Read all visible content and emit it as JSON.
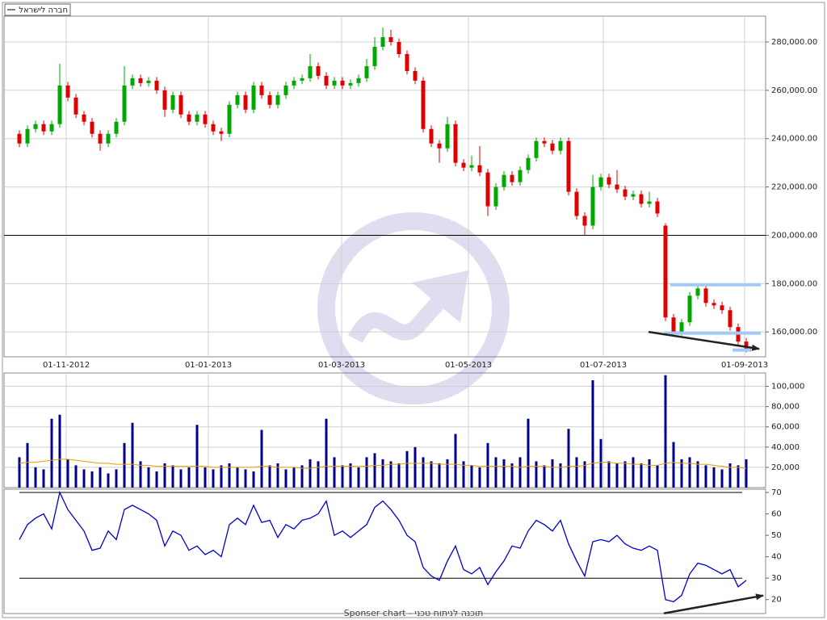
{
  "footer": "Sponser chart - תוכנה לניתוח טכני",
  "chart_data": [
    {
      "type": "candlestick",
      "title": "חברה לישראל",
      "xlim": [
        -1.9,
        92.4
      ],
      "xticks": [
        {
          "value": 5.8,
          "label": "01-11-2012"
        },
        {
          "value": 23.4,
          "label": "01-01-2013"
        },
        {
          "value": 39.9,
          "label": "01-03-2013"
        },
        {
          "value": 55.6,
          "label": "01-05-2013"
        },
        {
          "value": 72.3,
          "label": "01-07-2013"
        },
        {
          "value": 89.8,
          "label": "01-09-2013"
        }
      ],
      "ylim": [
        149700,
        290700
      ],
      "yticks": [
        {
          "value": 160000,
          "label": "160,000.00"
        },
        {
          "value": 180000,
          "label": "180,000.00"
        },
        {
          "value": 200000,
          "label": "200,000.00"
        },
        {
          "value": 220000,
          "label": "220,000.00"
        },
        {
          "value": 240000,
          "label": "240,000.00"
        },
        {
          "value": 260000,
          "label": "260,000.00"
        },
        {
          "value": 280000,
          "label": "280,000.00"
        }
      ],
      "grid": true,
      "up_color": "#00a800",
      "down_color": "#e00000",
      "open": [
        242000,
        238000,
        244000,
        246000,
        243000,
        246000,
        262000,
        257000,
        250000,
        247000,
        242000,
        238000,
        242000,
        247000,
        262000,
        265000,
        263000,
        264000,
        260000,
        252000,
        258000,
        250000,
        247000,
        250000,
        246000,
        243000,
        242000,
        254000,
        258000,
        252000,
        262000,
        258000,
        254000,
        258000,
        262000,
        264000,
        265000,
        270000,
        266000,
        262000,
        264000,
        262000,
        263000,
        265000,
        270000,
        278000,
        282000,
        280000,
        275000,
        268000,
        264000,
        244000,
        238000,
        236000,
        246000,
        230000,
        228000,
        229000,
        226000,
        212000,
        220000,
        225000,
        222000,
        227000,
        232000,
        239000,
        238000,
        235000,
        239000,
        218000,
        208000,
        204000,
        220000,
        224000,
        221000,
        219000,
        216000,
        217000,
        213000,
        214000,
        204000,
        166000,
        160000,
        164000,
        175000,
        178000,
        172000,
        171000,
        169000,
        162000,
        156000
      ],
      "high": [
        243500,
        245500,
        247500,
        247500,
        247500,
        271000,
        263500,
        258500,
        251500,
        248500,
        243500,
        243500,
        248500,
        270000,
        266500,
        266500,
        265500,
        265500,
        261500,
        259500,
        259500,
        251500,
        251500,
        251500,
        247500,
        244500,
        255500,
        259500,
        259500,
        263500,
        263500,
        259500,
        259500,
        263500,
        265500,
        266500,
        275000,
        271500,
        267500,
        265500,
        265500,
        264500,
        266500,
        273000,
        282000,
        286000,
        285000,
        281500,
        276500,
        269500,
        265500,
        245500,
        239500,
        249000,
        247500,
        231500,
        233000,
        237000,
        227500,
        221500,
        226500,
        226500,
        228500,
        233500,
        240500,
        240500,
        239500,
        240500,
        240500,
        219500,
        209500,
        225000,
        225500,
        225500,
        227000,
        220500,
        218500,
        218500,
        218000,
        215500,
        205000,
        167500,
        165500,
        176500,
        180000,
        179500,
        173500,
        172500,
        170500,
        163500,
        157500
      ],
      "low": [
        236500,
        236500,
        242500,
        241500,
        241500,
        244500,
        255500,
        248500,
        245500,
        240500,
        235000,
        236500,
        240500,
        245500,
        260500,
        261500,
        261500,
        258500,
        249000,
        250500,
        248500,
        245500,
        245500,
        244500,
        241500,
        239000,
        240500,
        252500,
        250500,
        250500,
        256500,
        252500,
        252500,
        256500,
        260500,
        262500,
        263500,
        264500,
        260500,
        260500,
        260500,
        260500,
        261500,
        263500,
        268500,
        276500,
        278500,
        273500,
        266500,
        262500,
        242500,
        236500,
        230000,
        234500,
        228500,
        226500,
        226500,
        224500,
        208000,
        210500,
        218500,
        220500,
        220500,
        225500,
        230500,
        236500,
        233500,
        233500,
        216500,
        206500,
        200000,
        202500,
        218500,
        219500,
        217500,
        214500,
        214500,
        211500,
        211500,
        207500,
        164500,
        158000,
        158500,
        162500,
        173500,
        170500,
        169500,
        167500,
        160500,
        154500,
        151500
      ],
      "close": [
        238000,
        244000,
        246000,
        243000,
        246000,
        262000,
        257000,
        250000,
        247000,
        242000,
        238000,
        242000,
        247000,
        262000,
        265000,
        263000,
        264000,
        260000,
        252000,
        258000,
        250000,
        247000,
        250000,
        246000,
        243000,
        242000,
        254000,
        258000,
        252000,
        262000,
        258000,
        254000,
        258000,
        262000,
        264000,
        265000,
        270000,
        266000,
        262000,
        264000,
        262000,
        263000,
        265000,
        270000,
        278000,
        282000,
        280000,
        275000,
        268000,
        264000,
        244000,
        238000,
        236000,
        246000,
        230000,
        228000,
        229000,
        226000,
        212000,
        220000,
        225000,
        222000,
        227000,
        232000,
        239000,
        238000,
        235000,
        239000,
        218000,
        208000,
        204000,
        220000,
        224000,
        221000,
        219000,
        216000,
        217000,
        213000,
        214000,
        209000,
        166000,
        160000,
        164000,
        175000,
        178000,
        172000,
        171000,
        169000,
        162000,
        156000,
        153000
      ],
      "levels": [
        {
          "value": 200000,
          "color": "#000000"
        }
      ],
      "support_lines": [
        {
          "value": 179500,
          "from": 80.6,
          "to": 91.8,
          "color": "#9fcaf5"
        },
        {
          "value": 159500,
          "from": 79.8,
          "to": 91.8,
          "color": "#9fcaf5"
        },
        {
          "value": 152500,
          "from": 88.3,
          "to": 90.6,
          "color": "#9fcaf5"
        }
      ],
      "trend_line": {
        "from": [
          77.9,
          160000
        ],
        "to": [
          91.6,
          153000
        ],
        "color": "#222222"
      }
    },
    {
      "type": "bar",
      "color": "#00008b",
      "ma_color": "#e0a000",
      "ylim": [
        0,
        113200
      ],
      "yticks": [
        {
          "value": 20000,
          "label": "20,000"
        },
        {
          "value": 40000,
          "label": "40,000"
        },
        {
          "value": 60000,
          "label": "60,000"
        },
        {
          "value": 80000,
          "label": "80,000"
        },
        {
          "value": 100000,
          "label": "100,000"
        }
      ],
      "grid": true,
      "values": [
        30000,
        44000,
        20000,
        18000,
        68000,
        72000,
        28000,
        22000,
        18000,
        16000,
        20000,
        14000,
        18000,
        44000,
        64000,
        26000,
        20000,
        16000,
        24000,
        22000,
        18000,
        20000,
        62000,
        20000,
        18000,
        22000,
        24000,
        20000,
        18000,
        16000,
        57000,
        22000,
        24000,
        18000,
        20000,
        22000,
        28000,
        26000,
        68000,
        30000,
        22000,
        24000,
        20000,
        30000,
        34000,
        28000,
        26000,
        24000,
        36000,
        40000,
        30000,
        26000,
        24000,
        28000,
        53000,
        26000,
        22000,
        20000,
        44000,
        30000,
        28000,
        24000,
        30000,
        68000,
        26000,
        22000,
        28000,
        24000,
        58000,
        30000,
        26000,
        106000,
        48000,
        26000,
        24000,
        26000,
        30000,
        24000,
        28000,
        22000,
        111000,
        45000,
        28000,
        30000,
        26000,
        22000,
        20000,
        18000,
        24000,
        22000,
        28000
      ],
      "ma": [
        24000,
        25000,
        25000,
        26000,
        27000,
        28000,
        28000,
        27000,
        26000,
        25000,
        24000,
        24000,
        23000,
        23000,
        23000,
        22000,
        22000,
        21000,
        21000,
        21000,
        21000,
        21000,
        21000,
        21000,
        20000,
        20000,
        20000,
        20000,
        20000,
        20000,
        21000,
        21000,
        20000,
        20000,
        20000,
        19000,
        19000,
        20000,
        21000,
        21000,
        21000,
        21000,
        21000,
        21000,
        22000,
        22000,
        23000,
        23000,
        24000,
        24000,
        24000,
        24000,
        23000,
        23000,
        23000,
        22000,
        22000,
        21000,
        21000,
        21000,
        21000,
        21000,
        20000,
        21000,
        21000,
        21000,
        20000,
        20000,
        21000,
        21000,
        22000,
        24000,
        25000,
        25000,
        24000,
        24000,
        23000,
        23000,
        22000,
        22000,
        24000,
        25000,
        24000,
        24000,
        23000,
        23000,
        22000,
        21000,
        20000,
        20000,
        19000
      ]
    },
    {
      "type": "line",
      "color": "#0000cc",
      "ylim": [
        13.5,
        71.5
      ],
      "yticks": [
        20,
        30,
        40,
        50,
        60,
        70
      ],
      "levels": [
        {
          "value": 70,
          "color": "#000000"
        },
        {
          "value": 30,
          "color": "#000000"
        }
      ],
      "values": [
        48,
        55,
        58,
        60,
        53,
        70,
        62,
        57,
        52,
        43,
        44,
        52,
        48,
        62,
        64,
        62,
        60,
        57,
        45,
        52,
        50,
        43,
        45,
        41,
        43,
        40,
        55,
        58,
        55,
        64,
        56,
        57,
        49,
        55,
        53,
        57,
        58,
        60,
        66,
        50,
        52,
        49,
        52,
        55,
        63,
        66,
        62,
        57,
        50,
        47,
        35,
        31,
        29,
        38,
        45,
        34,
        32,
        35,
        27,
        33,
        38,
        45,
        44,
        52,
        57,
        55,
        52,
        57,
        46,
        38,
        31,
        47,
        48,
        47,
        50,
        46,
        44,
        43,
        45,
        43,
        20,
        19,
        22,
        32,
        37,
        36,
        34,
        32,
        34,
        26,
        29
      ],
      "trend_line": {
        "from": [
          79.8,
          13.6
        ],
        "to": [
          92.1,
          21.9
        ],
        "color": "#222222"
      }
    }
  ]
}
